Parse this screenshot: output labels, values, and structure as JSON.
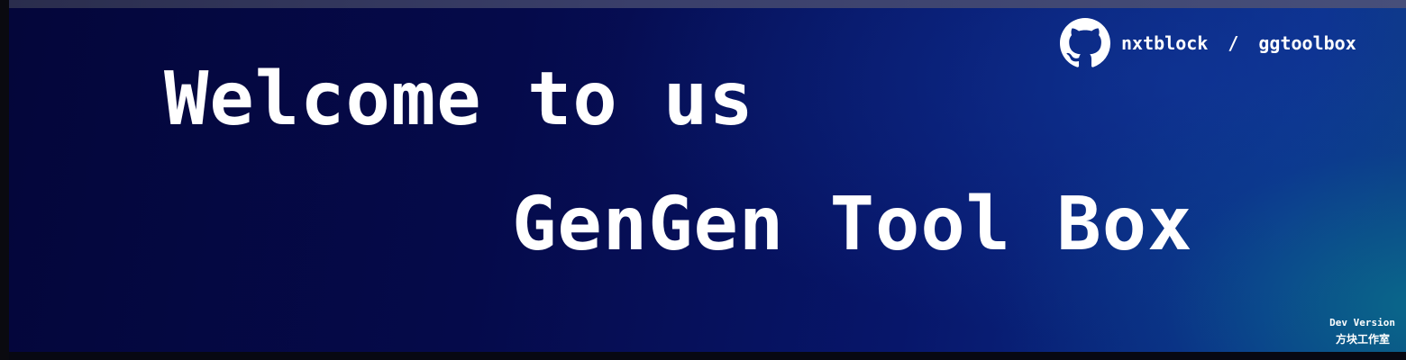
{
  "banner": {
    "headline": "Welcome to us",
    "subtitle": "GenGen Tool Box"
  },
  "repo": {
    "icon": "github-icon",
    "owner": "nxtblock",
    "separator": "/",
    "name": "ggtoolbox"
  },
  "footer": {
    "version": "Dev Version",
    "studio": "方块工作室"
  },
  "colors": {
    "banner_dark": "#04063a",
    "banner_mid": "#07166a",
    "banner_light": "#0c3f7e",
    "text": "#ffffff",
    "top_strip": "#3a3f6a"
  }
}
